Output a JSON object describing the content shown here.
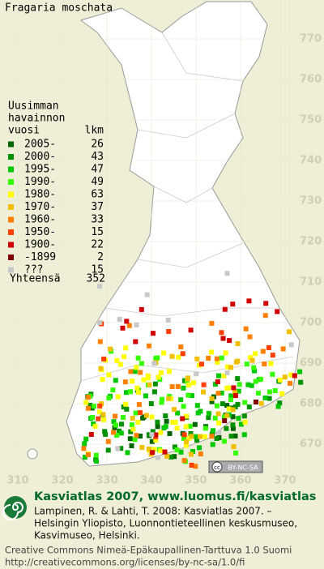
{
  "title": "Fragaria moschata",
  "legend": {
    "heading": [
      "Uusimman",
      "havainnon",
      "vuosi"
    ],
    "count_heading": "lkm",
    "items": [
      {
        "label": "2005-",
        "count": 26,
        "color": "#006400"
      },
      {
        "label": "2000-",
        "count": 43,
        "color": "#009000"
      },
      {
        "label": "1995-",
        "count": 47,
        "color": "#00c800"
      },
      {
        "label": "1990-",
        "count": 49,
        "color": "#33ff00"
      },
      {
        "label": "1980-",
        "count": 63,
        "color": "#ffff00"
      },
      {
        "label": "1970-",
        "count": 37,
        "color": "#f0c000"
      },
      {
        "label": "1960-",
        "count": 33,
        "color": "#ff8000"
      },
      {
        "label": "1950-",
        "count": 15,
        "color": "#ff4000"
      },
      {
        "label": "1900-",
        "count": 22,
        "color": "#d00000"
      },
      {
        "label": "-1899",
        "count": 2,
        "color": "#800000"
      },
      {
        "label": "???",
        "count": 15,
        "color": "#c8c8c8"
      }
    ],
    "total": {
      "label": "Yhteensä",
      "count": 352
    }
  },
  "grid": {
    "north": [
      770,
      760,
      750,
      740,
      730,
      720,
      710,
      700,
      690,
      680,
      670
    ],
    "east": [
      310,
      320,
      330,
      340,
      350,
      360,
      370
    ]
  },
  "license_badge": {
    "icon": "cc",
    "text": "BY-NC-SA"
  },
  "footer": {
    "site": "Kasviatlas 2007, www.luomus.fi/kasviatlas",
    "citation": [
      "Lampinen, R. & Lahti, T. 2008: Kasviatlas 2007. –",
      "Helsingin Yliopisto, Luonnontieteellinen keskusmuseo,",
      "Kasvimuseo, Helsinki."
    ],
    "license": [
      "Creative Commons Nimeä-Epäkaupallinen-Tarttuva 1.0 Suomi",
      "http://creativecommons.org/licenses/by-nc-sa/1.0/fi"
    ]
  }
}
